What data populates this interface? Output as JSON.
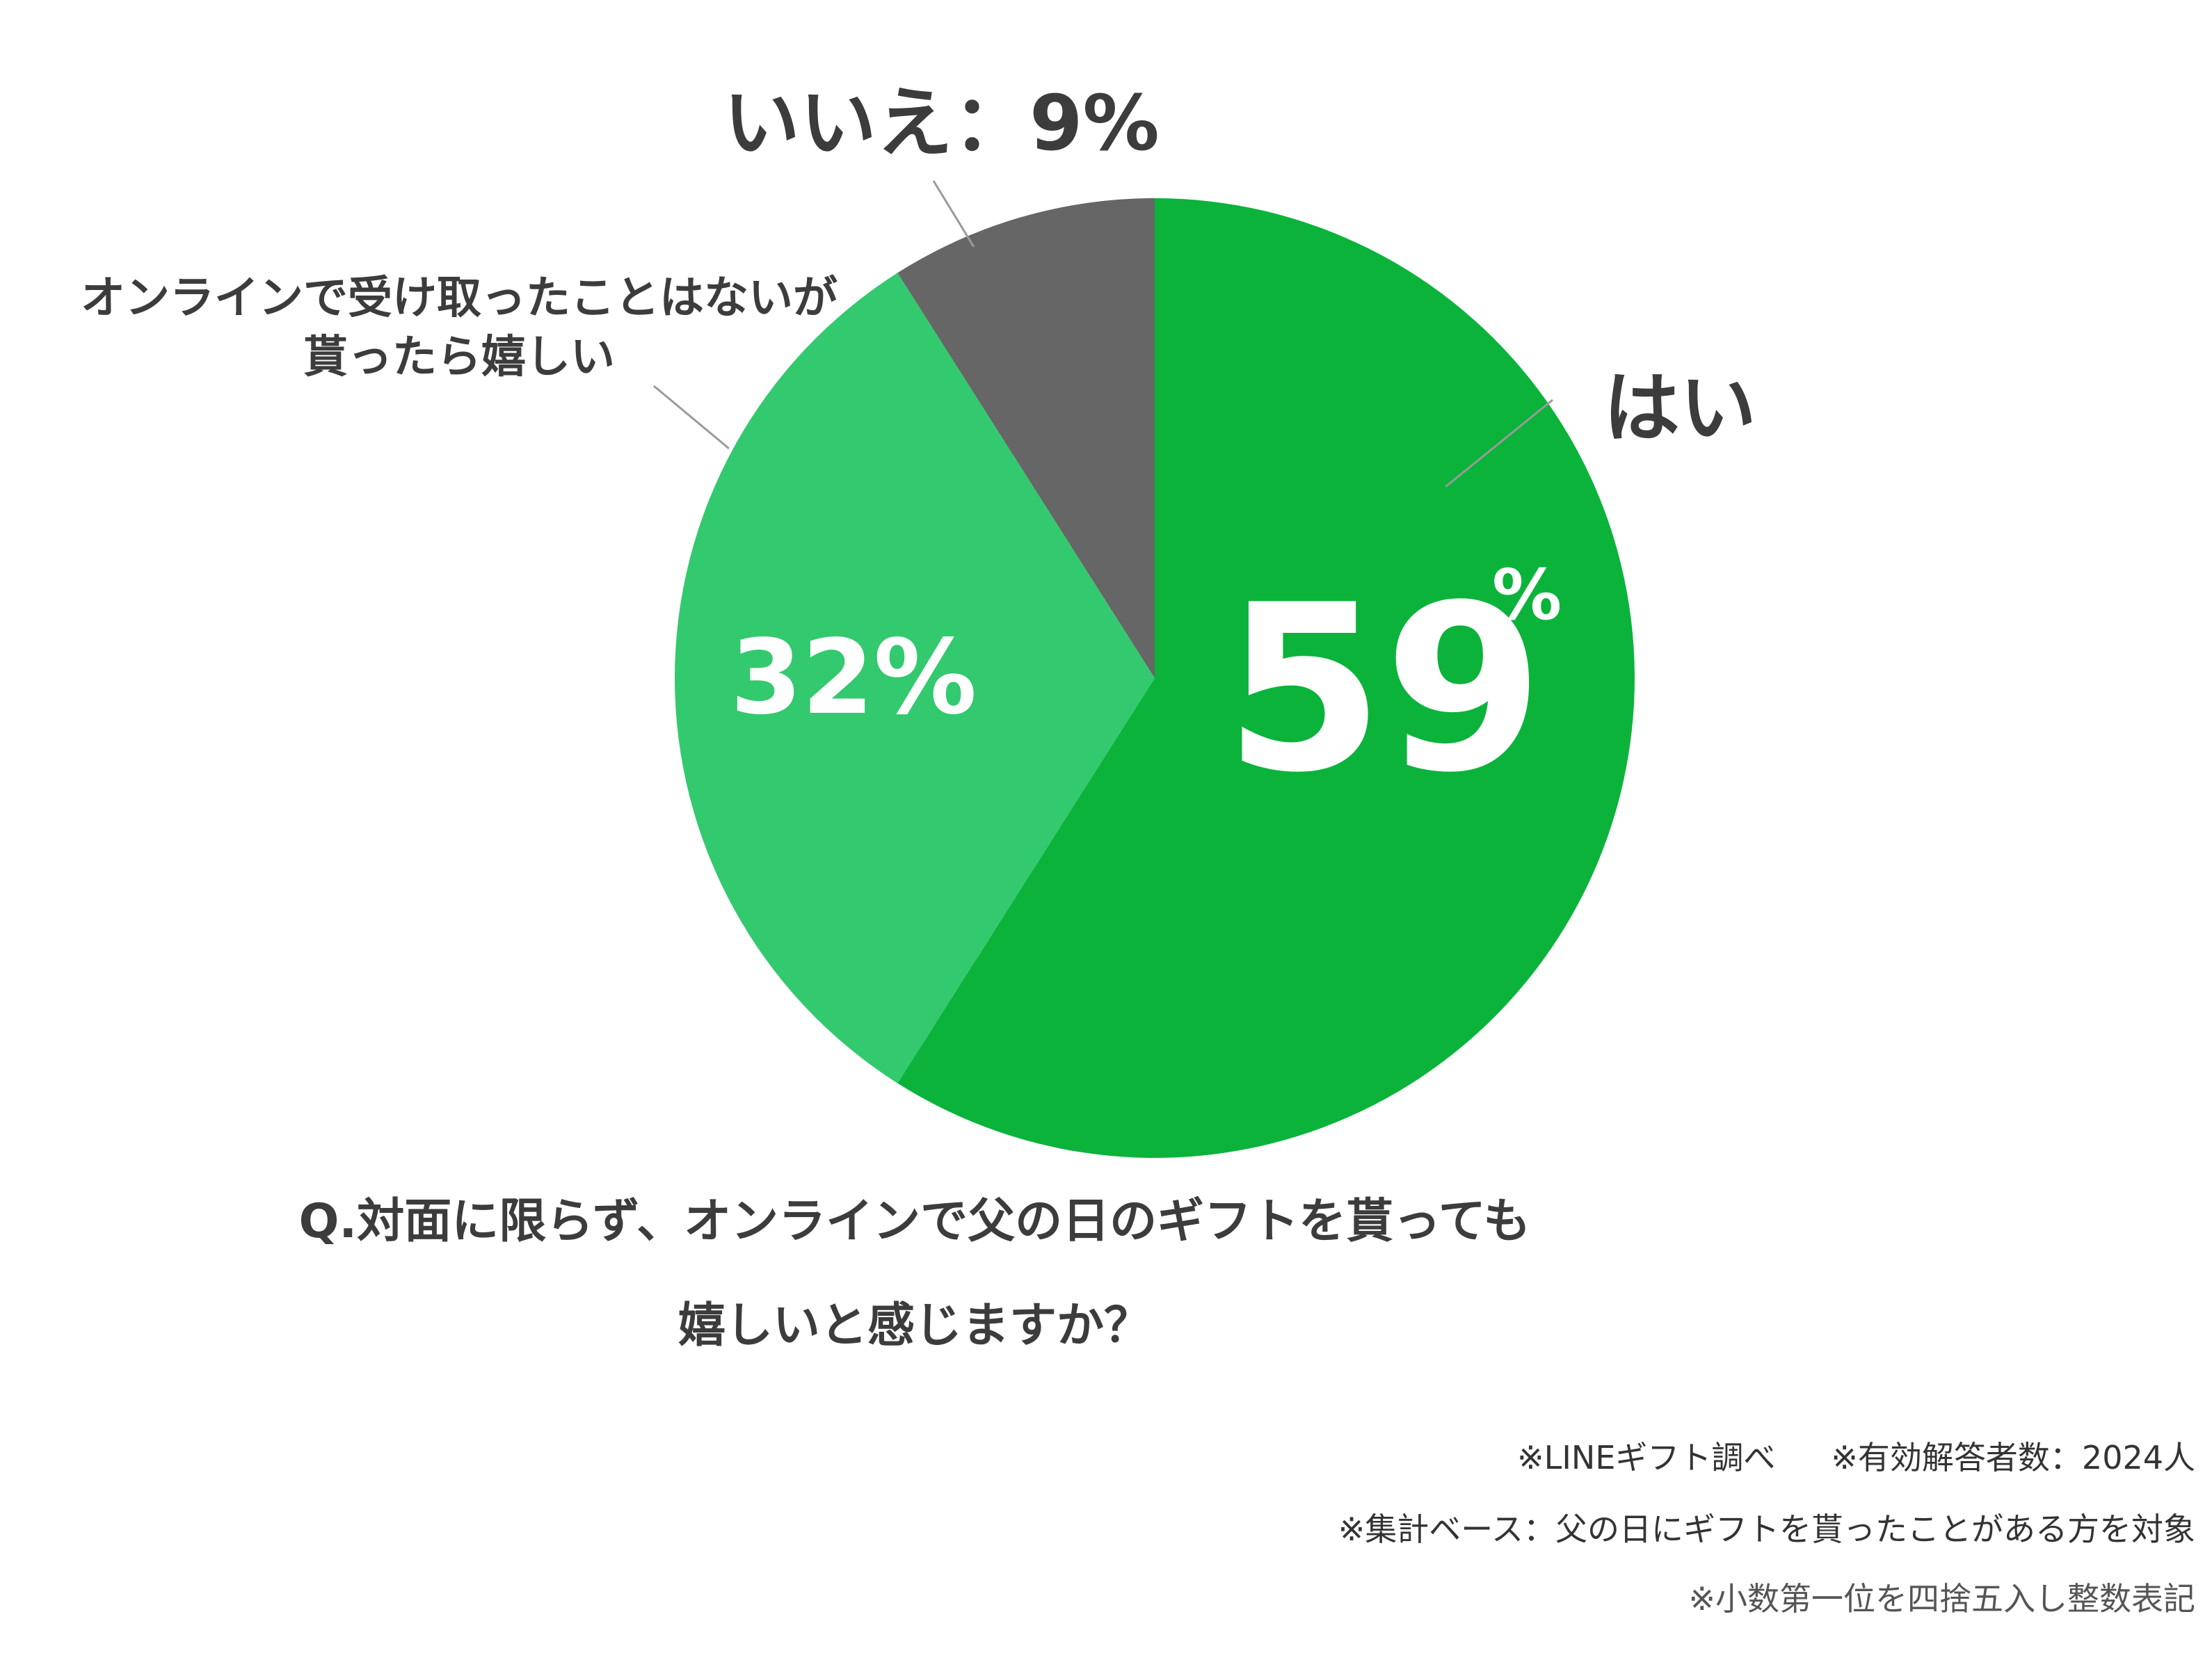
{
  "chart_data": {
    "type": "pie",
    "slices": [
      {
        "label": "はい",
        "value": 59,
        "value_label": "59",
        "unit_label": "%",
        "color": "#0bb33b"
      },
      {
        "label": "オンラインで受け取ったことはないが貰ったら嬉しい",
        "label_lines": [
          "オンラインで受け取ったことはないが",
          "貰ったら嬉しい"
        ],
        "value": 32,
        "value_label": "32%",
        "color": "#33c96e"
      },
      {
        "label": "いいえ",
        "value": 9,
        "value_label": "いいえ：9%",
        "color": "#666666"
      }
    ],
    "start_angle_deg": 0,
    "direction": "clockwise"
  },
  "question": {
    "line1": "Q.対面に限らず、オンラインで父の日のギフトを貰っても",
    "line2": "嬉しいと感じますか？"
  },
  "notes": {
    "source": "※LINEギフト調べ",
    "respondents": "※有効解答者数：2024人",
    "base": "※集計ベース：父の日にギフトを貰ったことがある方を対象",
    "rounding": "※小数第一位を四捨五入し整数表記"
  },
  "colors": {
    "text": "#3c3c3c",
    "leader": "#9a9a9a",
    "white": "#ffffff"
  }
}
